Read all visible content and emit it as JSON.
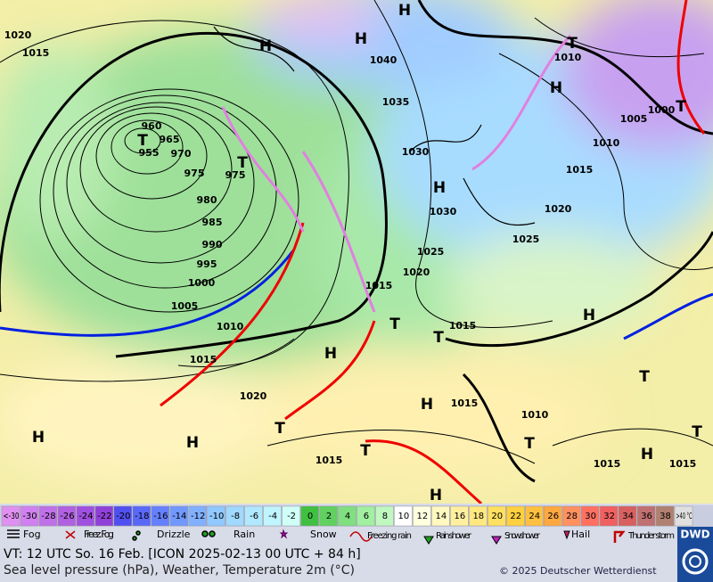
{
  "map": {
    "pressure_labels": [
      1020,
      1015,
      960,
      965,
      955,
      970,
      975,
      975,
      980,
      985,
      990,
      995,
      1000,
      1005,
      1010,
      1015,
      1020,
      1040,
      1035,
      1030,
      1030,
      1025,
      1020,
      1015,
      1015,
      1015,
      1010,
      1015,
      1015,
      1015,
      1025,
      1020,
      1015,
      1010,
      1005,
      1000,
      1010
    ],
    "centers": [
      "H",
      "H",
      "H",
      "H",
      "H",
      "H",
      "H",
      "H",
      "H",
      "H",
      "H",
      "H",
      "T",
      "T",
      "T",
      "T",
      "T",
      "T",
      "T",
      "T",
      "T",
      "T",
      "T"
    ]
  },
  "legend": {
    "temperatures": [
      "<-30",
      -30,
      -28,
      -26,
      -24,
      -22,
      -20,
      -18,
      -16,
      -14,
      -12,
      -10,
      -8,
      -6,
      -4,
      -2,
      0,
      2,
      4,
      6,
      8,
      10,
      12,
      14,
      16,
      18,
      20,
      22,
      24,
      26,
      28,
      30,
      32,
      34,
      36,
      38,
      ">40 °C"
    ],
    "colors": [
      "#e090f0",
      "#d080f0",
      "#c070e8",
      "#b060e0",
      "#a050e0",
      "#9040d8",
      "#5050f0",
      "#5a68f8",
      "#6480ff",
      "#7098ff",
      "#80b0ff",
      "#90c8ff",
      "#a0d8ff",
      "#b0e8ff",
      "#c0f4ff",
      "#d0fff8",
      "#40c040",
      "#60d060",
      "#80e080",
      "#a0f0a0",
      "#c0f8c0",
      "#ffffff",
      "#ffffe0",
      "#fff8c0",
      "#fff0a0",
      "#ffe880",
      "#ffe060",
      "#ffd040",
      "#ffc040",
      "#ffa840",
      "#ff9060",
      "#ff7060",
      "#f06060",
      "#d86060",
      "#c07070",
      "#b08070",
      "#e0e0e0"
    ],
    "weather": [
      "Fog",
      "Freez. Fog",
      "Drizzle",
      "Rain",
      "Snow",
      "Freezing rain",
      "Rain shower",
      "Snow shower",
      "Hail",
      "Thunder storm"
    ]
  },
  "caption": {
    "valid_time": "VT: 12 UTC So.  16 Feb. [ICON 2025-02-13  00 UTC + 84 h]",
    "description": "Sea level pressure (hPa), Weather, Temperature 2m (°C)",
    "copyright": "© 2025 Deutscher Wetterdienst",
    "logo": "DWD"
  }
}
